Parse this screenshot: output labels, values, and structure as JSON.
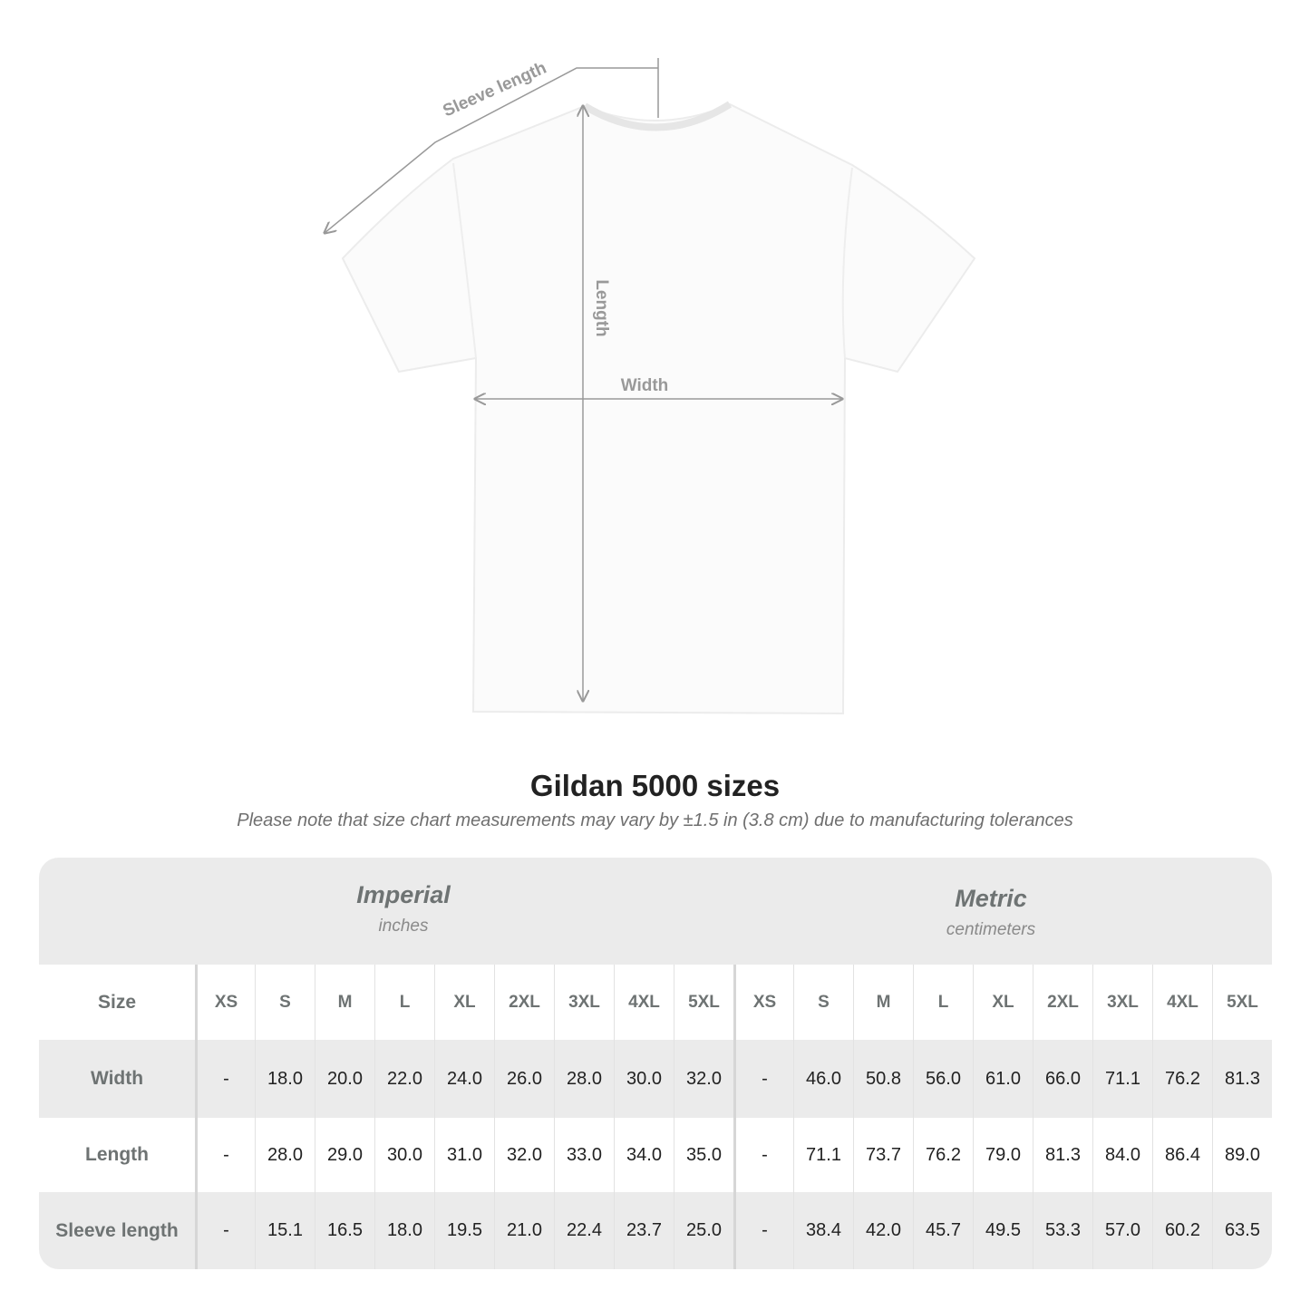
{
  "diagram": {
    "labels": {
      "sleeve": "Sleeve length",
      "length": "Length",
      "width": "Width"
    },
    "line_color": "#999999"
  },
  "title": "Gildan 5000 sizes",
  "note": "Please note that size chart measurements may vary by ±1.5 in (3.8 cm) due to manufacturing tolerances",
  "table": {
    "imperial": {
      "name": "Imperial",
      "unit": "inches"
    },
    "metric": {
      "name": "Metric",
      "unit": "centimeters"
    },
    "size_label": "Size",
    "sizes": [
      "XS",
      "S",
      "M",
      "L",
      "XL",
      "2XL",
      "3XL",
      "4XL",
      "5XL"
    ],
    "rows": [
      {
        "label": "Width",
        "imperial": [
          "-",
          "18.0",
          "20.0",
          "22.0",
          "24.0",
          "26.0",
          "28.0",
          "30.0",
          "32.0"
        ],
        "metric": [
          "-",
          "46.0",
          "50.8",
          "56.0",
          "61.0",
          "66.0",
          "71.1",
          "76.2",
          "81.3"
        ]
      },
      {
        "label": "Length",
        "imperial": [
          "-",
          "28.0",
          "29.0",
          "30.0",
          "31.0",
          "32.0",
          "33.0",
          "34.0",
          "35.0"
        ],
        "metric": [
          "-",
          "71.1",
          "73.7",
          "76.2",
          "79.0",
          "81.3",
          "84.0",
          "86.4",
          "89.0"
        ]
      },
      {
        "label": "Sleeve length",
        "imperial": [
          "-",
          "15.1",
          "16.5",
          "18.0",
          "19.5",
          "21.0",
          "22.4",
          "23.7",
          "25.0"
        ],
        "metric": [
          "-",
          "38.4",
          "42.0",
          "45.7",
          "49.5",
          "53.3",
          "57.0",
          "60.2",
          "63.5"
        ]
      }
    ],
    "band_color": "#ebebeb"
  }
}
